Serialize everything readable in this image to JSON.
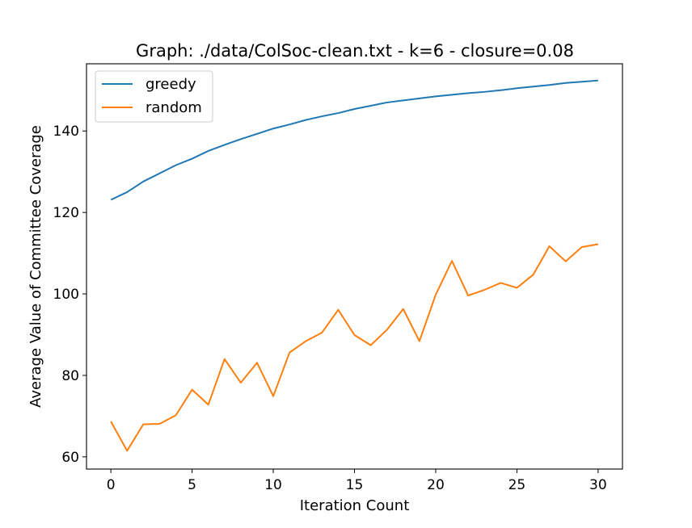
{
  "chart_data": {
    "type": "line",
    "title": "Graph: ./data/ColSoc-clean.txt - k=6 - closure=0.08",
    "xlabel": "Iteration Count",
    "ylabel": "Average Value of Committee Coverage",
    "xlim": [
      -1.5,
      31.5
    ],
    "ylim": [
      57.0,
      156.5
    ],
    "xticks": [
      0,
      5,
      10,
      15,
      20,
      25,
      30
    ],
    "yticks": [
      60,
      80,
      100,
      120,
      140
    ],
    "grid": false,
    "legend_position": "top-left",
    "x": [
      0,
      1,
      2,
      3,
      4,
      5,
      6,
      7,
      8,
      9,
      10,
      11,
      12,
      13,
      14,
      15,
      16,
      17,
      18,
      19,
      20,
      21,
      22,
      23,
      24,
      25,
      26,
      27,
      28,
      29,
      30
    ],
    "series": [
      {
        "name": "greedy",
        "color": "#1f77b4",
        "values": [
          123.1,
          125.0,
          127.6,
          129.6,
          131.6,
          133.2,
          135.1,
          136.6,
          138.0,
          139.3,
          140.6,
          141.6,
          142.7,
          143.6,
          144.4,
          145.4,
          146.2,
          147.0,
          147.5,
          148.0,
          148.5,
          148.9,
          149.3,
          149.6,
          150.0,
          150.5,
          150.9,
          151.3,
          151.8,
          152.1,
          152.4
        ]
      },
      {
        "name": "random",
        "color": "#ff7f0e",
        "values": [
          68.7,
          61.5,
          68.0,
          68.1,
          70.2,
          76.5,
          72.8,
          84.0,
          78.2,
          83.1,
          74.9,
          85.6,
          88.4,
          90.5,
          96.1,
          89.9,
          87.4,
          91.2,
          96.3,
          88.4,
          99.8,
          108.1,
          99.6,
          101.0,
          102.7,
          101.5,
          104.7,
          111.7,
          108.0,
          111.5,
          112.2
        ]
      }
    ]
  }
}
